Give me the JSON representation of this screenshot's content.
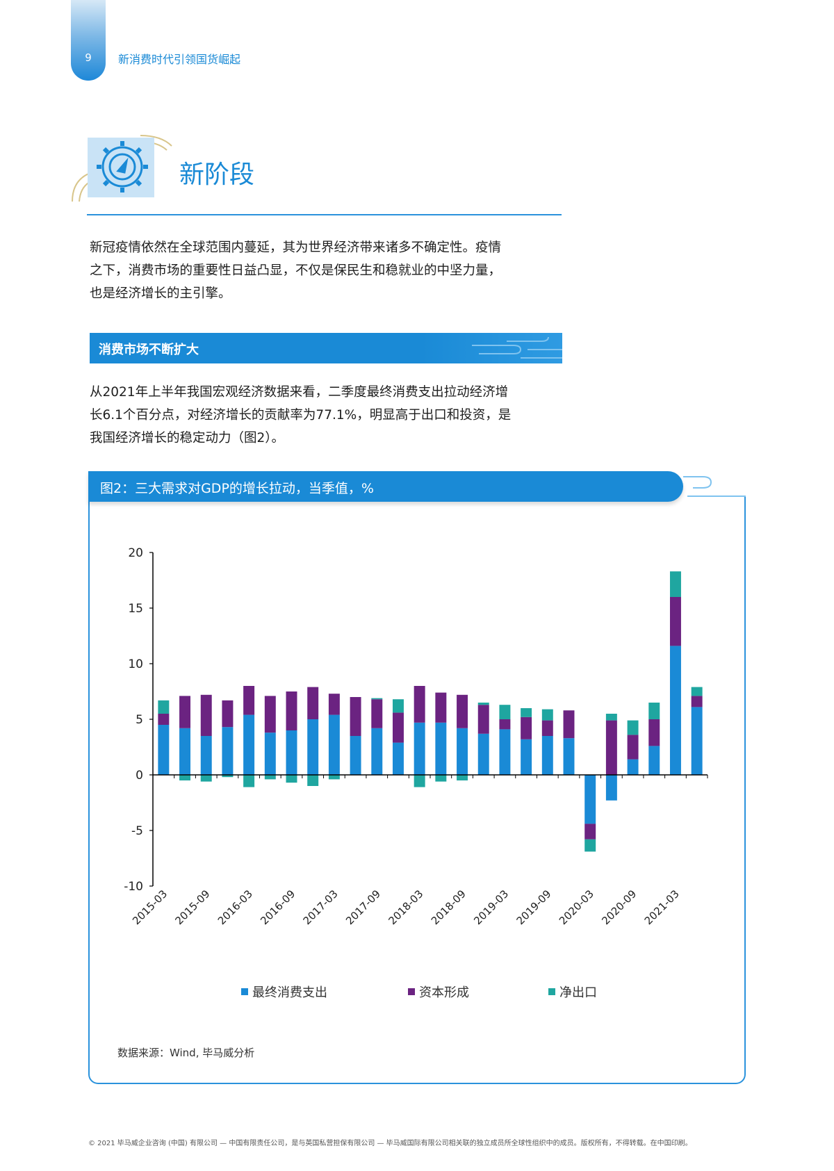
{
  "header": {
    "page_number": "9",
    "running_title": "新消费时代引领国货崛起"
  },
  "section": {
    "title": "新阶段"
  },
  "intro_paragraph": [
    "新冠疫情依然在全球范围内蔓延，其为世界经济带来诸多不确定性。疫情",
    "之下，消费市场的重要性日益凸显，不仅是保民生和稳就业的中坚力量，",
    "也是经济增长的主引擎。"
  ],
  "subsection": {
    "title": "消费市场不断扩大"
  },
  "body_paragraph": [
    "从2021年上半年我国宏观经济数据来看，二季度最终消费支出拉动经济增",
    "长6.1个百分点，对经济增长的贡献率为77.1%，明显高于出口和投资，是",
    "我国经济增长的稳定动力（图2）。"
  ],
  "figure": {
    "caption": "图2：三大需求对GDP的增长拉动，当季值，%",
    "source": "数据来源：Wind, 毕马威分析"
  },
  "chart_data": {
    "type": "bar",
    "stacked": true,
    "ylim": [
      -10,
      20
    ],
    "yticks": [
      20,
      15,
      10,
      5,
      0,
      -5,
      -10
    ],
    "x_tick_labels": [
      "2015-03",
      "2015-09",
      "2016-03",
      "2016-09",
      "2017-03",
      "2017-09",
      "2018-03",
      "2018-09",
      "2019-03",
      "2019-09",
      "2020-03",
      "2020-09",
      "2021-03"
    ],
    "categories": [
      "2015-03",
      "2015-06",
      "2015-09",
      "2015-12",
      "2016-03",
      "2016-06",
      "2016-09",
      "2016-12",
      "2017-03",
      "2017-06",
      "2017-09",
      "2017-12",
      "2018-03",
      "2018-06",
      "2018-09",
      "2018-12",
      "2019-03",
      "2019-06",
      "2019-09",
      "2019-12",
      "2020-03",
      "2020-06",
      "2020-09",
      "2020-12",
      "2021-03",
      "2021-06"
    ],
    "series": [
      {
        "name": "最终消费支出",
        "color": "#1a8ad6",
        "values": [
          4.5,
          4.2,
          3.5,
          4.3,
          5.4,
          3.8,
          4.0,
          5.0,
          5.4,
          3.5,
          4.2,
          2.9,
          4.7,
          4.7,
          4.2,
          3.7,
          4.1,
          3.2,
          3.5,
          3.3,
          -4.4,
          -2.3,
          1.4,
          2.6,
          11.6,
          6.1
        ]
      },
      {
        "name": "资本形成",
        "color": "#6b2381",
        "values": [
          1.0,
          2.9,
          3.7,
          2.4,
          2.6,
          3.3,
          3.5,
          2.9,
          1.9,
          3.5,
          2.6,
          2.7,
          3.3,
          2.7,
          3.0,
          2.6,
          0.9,
          2.0,
          1.4,
          2.5,
          -1.4,
          4.9,
          2.2,
          2.4,
          4.4,
          1.0
        ]
      },
      {
        "name": "净出口",
        "color": "#1fa6a0",
        "values": [
          1.2,
          -0.5,
          -0.6,
          -0.2,
          -1.1,
          -0.4,
          -0.7,
          -1.0,
          -0.4,
          0,
          0.1,
          1.2,
          -1.1,
          -0.6,
          -0.5,
          0.2,
          1.3,
          0.8,
          1.0,
          0,
          -1.1,
          0.6,
          1.3,
          1.5,
          2.3,
          0.8
        ]
      }
    ]
  },
  "footer": "© 2021 毕马威企业咨询 (中国) 有限公司 — 中国有限责任公司，是与英国私营担保有限公司 — 毕马威国际有限公司相关联的独立成员所全球性组织中的成员。版权所有，不得转载。在中国印刷。"
}
